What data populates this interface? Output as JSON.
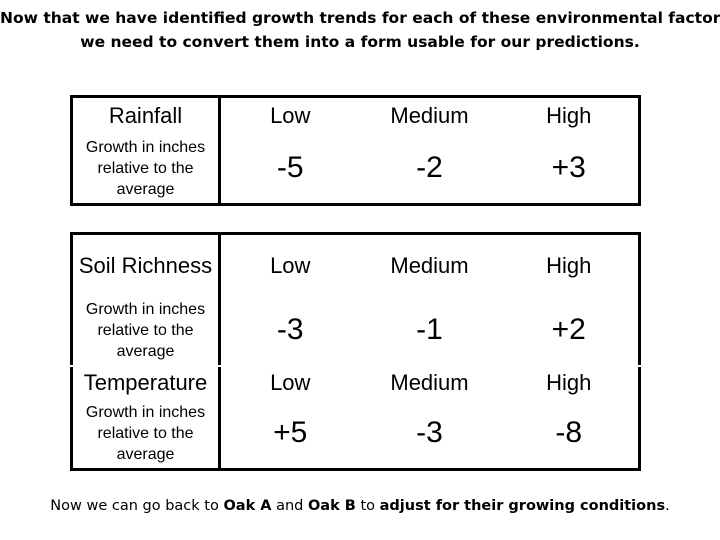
{
  "title": {
    "line1": "Now that we have identified growth trends for each of these environmental factors,",
    "line2": "we need to convert them into a form usable for our predictions."
  },
  "tables": [
    {
      "factor": "Rainfall",
      "levels": [
        "Low",
        "Medium",
        "High"
      ],
      "row_label": "Growth in inches relative to the average",
      "values": [
        "-5",
        "-2",
        "+3"
      ]
    },
    {
      "factor": "Soil Richness",
      "levels": [
        "Low",
        "Medium",
        "High"
      ],
      "row_label": "Growth in inches relative to the average",
      "values": [
        "-3",
        "-1",
        "+2"
      ]
    },
    {
      "factor": "Temperature",
      "levels": [
        "Low",
        "Medium",
        "High"
      ],
      "row_label": "Growth in inches relative to the average",
      "values": [
        "+5",
        "-3",
        "-8"
      ]
    }
  ],
  "footer": {
    "part1": "Now we can go back to ",
    "oak_a": "Oak A",
    "part2": " and ",
    "oak_b": "Oak B",
    "part3": " to ",
    "part4": "adjust for their growing conditions",
    "part5": "."
  }
}
